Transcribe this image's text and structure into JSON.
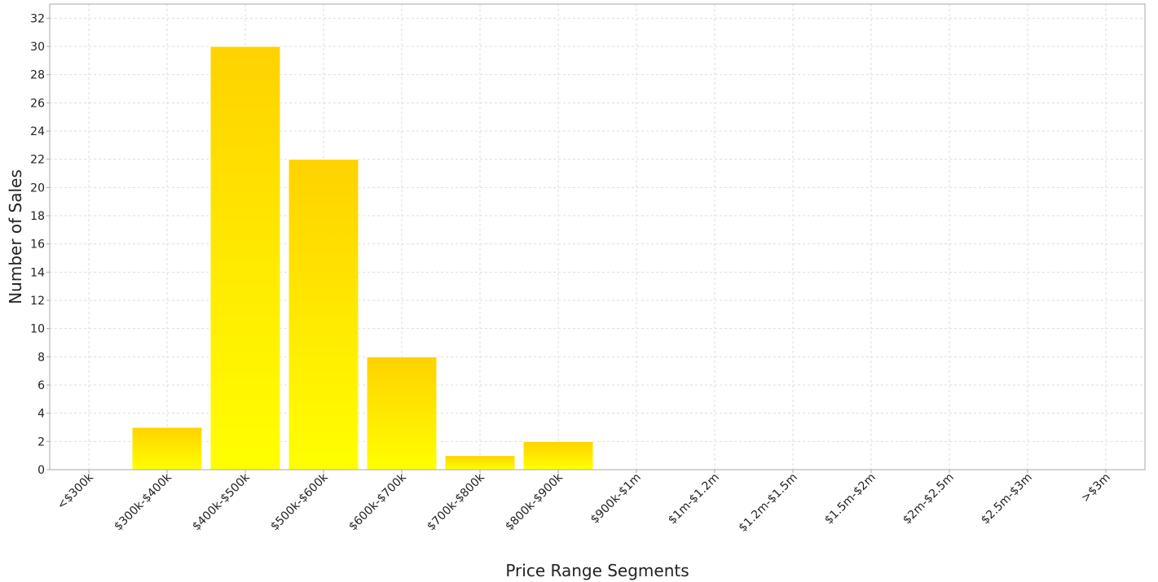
{
  "chart_data": {
    "type": "bar",
    "title": "",
    "xlabel": "Price Range Segments",
    "ylabel": "Number of Sales",
    "ylim": [
      0,
      33
    ],
    "yticks": [
      0,
      2,
      4,
      6,
      8,
      10,
      12,
      14,
      16,
      18,
      20,
      22,
      24,
      26,
      28,
      30,
      32
    ],
    "categories": [
      "<$300k",
      "$300k-$400k",
      "$400k-$500k",
      "$500k-$600k",
      "$600k-$700k",
      "$700k-$800k",
      "$800k-$900k",
      "$900k-$1m",
      "$1m-$1.2m",
      "$1.2m-$1.5m",
      "$1.5m-$2m",
      "$2m-$2.5m",
      "$2.5m-$3m",
      ">$3m"
    ],
    "values": [
      0,
      3,
      30,
      22,
      8,
      1,
      2,
      0,
      0,
      0,
      0,
      0,
      0,
      0
    ],
    "grid": true,
    "legend": "none",
    "colors": {
      "bar_top": "#FFD200",
      "bar_bottom": "#FFFF00",
      "bar_outline": "#FFFFFF",
      "grid": "#DDDDDD",
      "axis": "#AAAAAA",
      "text": "#222222"
    }
  }
}
